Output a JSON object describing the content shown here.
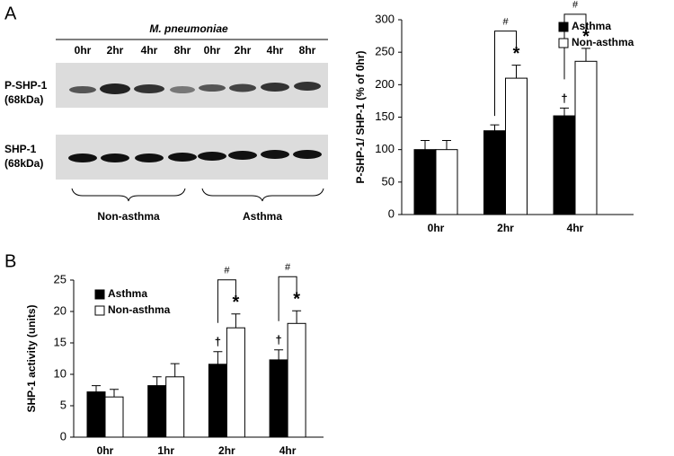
{
  "blot": {
    "title": "M. pneumoniae",
    "lanes": [
      "0hr",
      "2hr",
      "4hr",
      "8hr",
      "0hr",
      "2hr",
      "4hr",
      "8hr"
    ],
    "rows": [
      [
        "P-SHP-1",
        "(68kDa)"
      ],
      [
        "SHP-1",
        "(68kDa)"
      ]
    ],
    "groups": [
      "Non-asthma",
      "Asthma"
    ]
  },
  "chart_data": [
    {
      "type": "bar",
      "panel": "A",
      "ylabel": "P-SHP-1/ SHP-1 (% of 0hr)",
      "categories": [
        "0hr",
        "2hr",
        "4hr"
      ],
      "series": [
        {
          "name": "Asthma",
          "color": "#000000",
          "values": [
            100,
            129,
            152
          ],
          "errors": [
            14,
            9,
            12
          ],
          "significance": [
            null,
            null,
            "†"
          ]
        },
        {
          "name": "Non-asthma",
          "color": "#ffffff",
          "values": [
            100,
            210,
            236
          ],
          "errors": [
            14,
            20,
            20
          ],
          "significance": [
            null,
            "*",
            "*"
          ]
        }
      ],
      "brackets": [
        null,
        "#",
        "#"
      ],
      "ylim": [
        0,
        300
      ],
      "yticks": [
        0,
        50,
        100,
        150,
        200,
        250,
        300
      ],
      "legend": "upper right"
    },
    {
      "type": "bar",
      "panel": "B",
      "ylabel": "SHP-1 activity (units)",
      "categories": [
        "0hr",
        "1hr",
        "2hr",
        "4hr"
      ],
      "series": [
        {
          "name": "Asthma",
          "color": "#000000",
          "values": [
            7.2,
            8.2,
            11.6,
            12.3
          ],
          "errors": [
            1.0,
            1.4,
            2.0,
            1.6
          ],
          "significance": [
            null,
            null,
            "†",
            "†"
          ]
        },
        {
          "name": "Non-asthma",
          "color": "#ffffff",
          "values": [
            6.4,
            9.6,
            17.4,
            18.1
          ],
          "errors": [
            1.2,
            2.1,
            2.2,
            2.0
          ],
          "significance": [
            null,
            null,
            "*",
            "*"
          ]
        }
      ],
      "brackets": [
        null,
        null,
        "#",
        "#"
      ],
      "ylim": [
        0,
        25
      ],
      "yticks": [
        0,
        5,
        10,
        15,
        20,
        25
      ],
      "legend": "upper left"
    }
  ]
}
